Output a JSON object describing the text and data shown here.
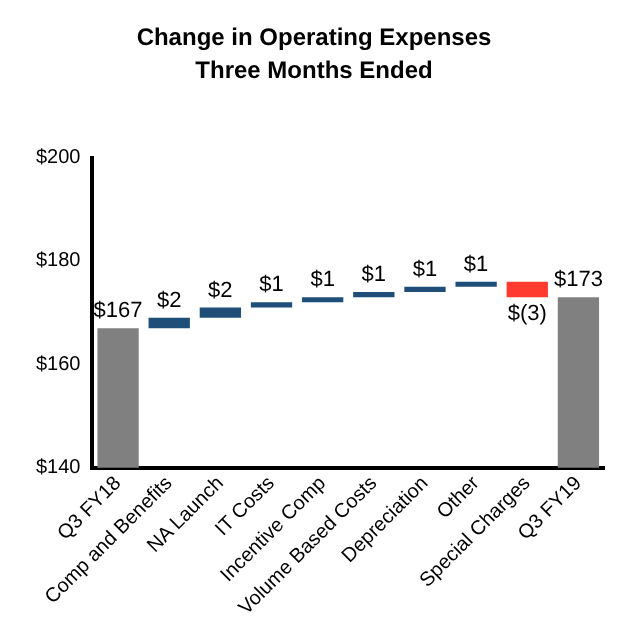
{
  "chart_data": {
    "type": "bar",
    "title": "Change in Operating Expenses",
    "subtitle": "Three Months Ended",
    "categories": [
      "Q3 FY18",
      "Comp and Benefits",
      "NA Launch",
      "IT Costs",
      "Incentive Comp",
      "Volume Based Costs",
      "Depreciation",
      "Other",
      "Special Charges",
      "Q3 FY19"
    ],
    "values": [
      167,
      2,
      2,
      1,
      1,
      1,
      1,
      1,
      -3,
      173
    ],
    "base": [
      null,
      167,
      169,
      171,
      172,
      173,
      174,
      175,
      176,
      null
    ],
    "colors": [
      "#808080",
      "#1f4e79",
      "#1f4e79",
      "#1f4e79",
      "#1f4e79",
      "#1f4e79",
      "#1f4e79",
      "#1f4e79",
      "#ff3b30",
      "#808080"
    ],
    "value_labels": [
      "$167",
      "$2",
      "$2",
      "$1",
      "$1",
      "$1",
      "$1",
      "$1",
      "$(3)",
      "$173"
    ],
    "ylim": [
      140,
      200
    ],
    "yticks": [
      {
        "value": 140,
        "label": "$140"
      },
      {
        "value": 160,
        "label": "$160"
      },
      {
        "value": 180,
        "label": "$180"
      },
      {
        "value": 200,
        "label": "$200"
      }
    ],
    "grid": false,
    "legend": false
  }
}
